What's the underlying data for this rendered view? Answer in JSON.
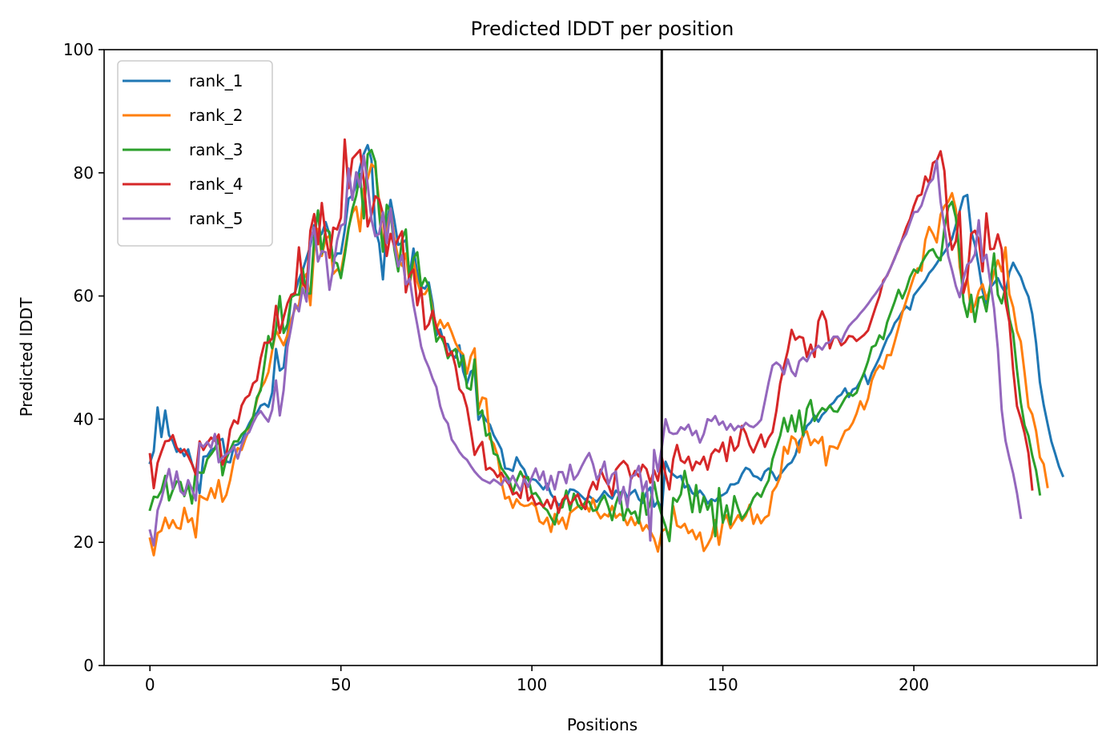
{
  "chart_data": {
    "type": "line",
    "title": "Predicted lDDT per position",
    "xlabel": "Positions",
    "ylabel": "Predicted lDDT",
    "xlim": [
      -12,
      248
    ],
    "ylim": [
      0,
      100
    ],
    "xticks": [
      0,
      50,
      100,
      150,
      200
    ],
    "yticks": [
      0,
      20,
      40,
      60,
      80,
      100
    ],
    "grid": false,
    "legend_position": "top-left",
    "vline": 134,
    "vline_color": "#000000",
    "series": [
      {
        "name": "rank_1",
        "color": "#1f77b4",
        "values": [
          32.9,
          34.8,
          41.9,
          37.1,
          41.4,
          37.4,
          36.4,
          34.7,
          35.2,
          34.0,
          35.1,
          32.8,
          31.2,
          28.0,
          33.9,
          34.0,
          35.0,
          35.3,
          36.5,
          36.8,
          33.1,
          33.0,
          35.7,
          35.9,
          36.4,
          38.0,
          39.3,
          40.4,
          41.0,
          42.2,
          42.5,
          42.0,
          44.3,
          51.4,
          47.9,
          48.4,
          53.8,
          60.0,
          60.6,
          62.7,
          64.2,
          66.2,
          68.1,
          71.5,
          69.6,
          70.1,
          72.0,
          70.0,
          65.9,
          66.9,
          66.9,
          70.7,
          75.8,
          76.3,
          78.1,
          80.9,
          83.1,
          84.5,
          82.1,
          70.9,
          68.6,
          62.7,
          71.3,
          75.6,
          72.2,
          68.3,
          68.6,
          69.1,
          63.3,
          67.7,
          63.7,
          61.5,
          61.2,
          62.2,
          58.8,
          53.6,
          54.6,
          52.3,
          52.2,
          50.4,
          50.0,
          52.0,
          47.8,
          45.8,
          47.7,
          48.1,
          39.9,
          40.9,
          39.8,
          39.1,
          37.4,
          36.3,
          35.1,
          32.0,
          31.9,
          31.6,
          33.8,
          32.6,
          31.8,
          30.1,
          30.3,
          30.1,
          29.4,
          28.6,
          29.5,
          27.8,
          27.0,
          26.0,
          26.5,
          27.3,
          28.6,
          28.5,
          28.1,
          27.5,
          26.9,
          27.5,
          27.0,
          26.6,
          27.4,
          28.3,
          27.6,
          27.1,
          28.4,
          27.8,
          28.6,
          27.3,
          28.0,
          28.5,
          27.0,
          26.4,
          28.1,
          28.9,
          25.8,
          26.7,
          25.3,
          33.1,
          31.6,
          31.0,
          30.5,
          30.8,
          28.9,
          29.3,
          28.0,
          27.6,
          28.4,
          27.6,
          26.3,
          27.0,
          26.7,
          27.4,
          27.7,
          28.1,
          29.4,
          29.4,
          29.7,
          31.1,
          32.1,
          31.8,
          30.8,
          30.6,
          30.1,
          31.5,
          32.0,
          31.3,
          30.1,
          31.0,
          31.8,
          32.6,
          33.0,
          34.2,
          36.4,
          37.2,
          38.9,
          39.5,
          40.6,
          39.6,
          40.7,
          41.3,
          42.2,
          42.7,
          43.6,
          44.0,
          45.0,
          43.6,
          44.8,
          45.1,
          46.2,
          47.4,
          45.7,
          47.5,
          48.7,
          50.0,
          51.6,
          53.1,
          54.1,
          55.6,
          56.4,
          57.5,
          58.3,
          57.8,
          60.1,
          60.9,
          61.7,
          62.5,
          63.7,
          64.4,
          65.3,
          66.3,
          67.1,
          68.1,
          69.3,
          71.5,
          73.8,
          76.1,
          76.4,
          70.5,
          68.3,
          64.8,
          60.8,
          58.8,
          61.4,
          62.1,
          62.9,
          61.5,
          60.5,
          63.8,
          65.4,
          64.2,
          63.1,
          61.3,
          59.9,
          57.1,
          52.4,
          46.0,
          42.3,
          39.3,
          36.4,
          34.4,
          32.3,
          30.8
        ]
      },
      {
        "name": "rank_2",
        "color": "#ff7f0e",
        "values": [
          20.6,
          17.9,
          21.5,
          21.9,
          24.0,
          22.3,
          23.6,
          22.4,
          22.2,
          25.6,
          23.3,
          23.9,
          20.8,
          27.6,
          27.2,
          26.9,
          28.8,
          27.2,
          30.1,
          26.6,
          27.7,
          30.1,
          33.4,
          35.3,
          35.0,
          36.8,
          38.3,
          40.4,
          43.1,
          45.0,
          46.0,
          47.6,
          51.1,
          54.4,
          53.2,
          52.0,
          53.7,
          56.1,
          58.0,
          58.5,
          62.6,
          63.6,
          58.5,
          67.4,
          70.9,
          66.5,
          69.3,
          69.8,
          63.6,
          64.3,
          63.9,
          67.4,
          71.1,
          73.5,
          74.5,
          70.5,
          77.4,
          79.0,
          81.4,
          80.8,
          75.4,
          67.8,
          70.2,
          74.2,
          69.3,
          66.1,
          64.9,
          66.9,
          61.9,
          65.7,
          62.3,
          60.3,
          60.3,
          61.4,
          57.8,
          54.7,
          56.1,
          54.8,
          55.6,
          54.1,
          52.4,
          51.2,
          50.5,
          47.4,
          50.2,
          51.5,
          41.6,
          43.5,
          43.3,
          36.8,
          36.0,
          34.1,
          29.9,
          27.1,
          27.4,
          25.6,
          27.0,
          26.2,
          25.9,
          26.0,
          26.4,
          25.8,
          23.4,
          23.0,
          24.0,
          21.7,
          24.6,
          23.0,
          24.0,
          22.2,
          24.8,
          25.3,
          25.8,
          26.1,
          26.3,
          25.0,
          27.1,
          25.0,
          23.9,
          24.6,
          24.2,
          25.9,
          24.0,
          24.6,
          24.2,
          22.8,
          24.1,
          22.8,
          23.8,
          21.9,
          22.8,
          21.8,
          20.6,
          18.5,
          21.8,
          22.2,
          21.1,
          25.9,
          22.7,
          22.4,
          23.0,
          21.5,
          22.0,
          20.5,
          21.6,
          18.6,
          19.6,
          20.8,
          23.6,
          19.6,
          23.4,
          24.4,
          22.3,
          23.3,
          24.4,
          23.5,
          24.3,
          26.1,
          23.0,
          24.5,
          23.1,
          24.0,
          24.4,
          28.2,
          29.1,
          30.6,
          35.5,
          34.4,
          37.2,
          36.7,
          34.6,
          37.8,
          38.0,
          35.8,
          36.7,
          36.1,
          37.1,
          32.5,
          35.6,
          35.5,
          35.2,
          36.7,
          38.1,
          38.4,
          39.4,
          40.9,
          42.9,
          41.6,
          43.3,
          46.3,
          47.8,
          48.7,
          48.2,
          50.4,
          50.4,
          52.6,
          54.9,
          57.3,
          59.2,
          61.2,
          63.1,
          64.5,
          64.1,
          69.1,
          71.2,
          70.1,
          68.7,
          73.2,
          74.6,
          75.3,
          76.7,
          74.1,
          64.8,
          61.1,
          62.9,
          57.4,
          58.5,
          60.8,
          61.9,
          59.5,
          61.2,
          63.9,
          65.8,
          64.0,
          67.9,
          60.3,
          58.2,
          54.3,
          52.6,
          47.5,
          42.0,
          40.8,
          38.1,
          33.8,
          32.7,
          29.0
        ]
      },
      {
        "name": "rank_3",
        "color": "#2ca02c",
        "values": [
          25.3,
          27.4,
          27.3,
          28.4,
          30.8,
          26.8,
          28.5,
          29.9,
          29.8,
          27.5,
          29.4,
          26.3,
          31.7,
          31.3,
          31.3,
          33.5,
          34.3,
          35.2,
          37.0,
          30.9,
          33.6,
          35.0,
          36.4,
          36.4,
          37.5,
          38.1,
          38.8,
          40.3,
          43.5,
          44.7,
          49.0,
          53.5,
          51.5,
          54.6,
          60.0,
          54.0,
          55.4,
          59.8,
          60.2,
          60.2,
          64.4,
          60.4,
          60.4,
          69.3,
          73.9,
          66.9,
          70.8,
          70.4,
          65.6,
          65.3,
          62.9,
          66.6,
          70.9,
          74.1,
          76.3,
          79.8,
          72.6,
          83.0,
          83.7,
          81.8,
          73.5,
          67.2,
          74.8,
          73.6,
          67.5,
          64.0,
          69.2,
          70.8,
          62.2,
          66.1,
          67.1,
          61.5,
          62.9,
          61.6,
          56.8,
          52.6,
          53.6,
          52.4,
          49.9,
          50.9,
          51.4,
          48.5,
          50.3,
          45.1,
          44.8,
          49.7,
          40.8,
          41.4,
          37.3,
          37.7,
          34.4,
          34.1,
          32.1,
          31.2,
          30.3,
          28.1,
          30.0,
          31.5,
          30.3,
          30.6,
          27.8,
          28.0,
          27.1,
          25.7,
          25.2,
          24.0,
          22.9,
          25.5,
          25.7,
          28.4,
          25.2,
          27.9,
          26.1,
          25.4,
          26.6,
          26.6,
          25.1,
          25.3,
          26.7,
          27.6,
          25.8,
          23.6,
          26.3,
          28.1,
          23.6,
          25.6,
          24.6,
          25.0,
          23.1,
          28.4,
          24.5,
          26.4,
          29.8,
          26.5,
          24.4,
          22.6,
          20.2,
          27.2,
          26.6,
          27.8,
          31.6,
          28.5,
          24.9,
          29.3,
          24.9,
          27.4,
          25.3,
          26.8,
          21.0,
          28.8,
          23.2,
          26.0,
          22.9,
          27.5,
          25.5,
          23.8,
          24.7,
          25.7,
          27.2,
          28.0,
          27.4,
          28.9,
          30.1,
          33.5,
          35.4,
          37.3,
          40.2,
          38.0,
          40.6,
          38.0,
          41.4,
          37.4,
          41.7,
          43.1,
          39.7,
          40.9,
          41.8,
          41.4,
          42.2,
          41.3,
          41.2,
          42.3,
          43.4,
          44.2,
          43.8,
          44.3,
          46.1,
          47.6,
          49.4,
          51.7,
          52.0,
          53.6,
          53.0,
          55.7,
          57.4,
          59.1,
          61.0,
          59.6,
          61.1,
          63.1,
          64.3,
          63.8,
          65.3,
          66.4,
          67.3,
          67.6,
          66.4,
          65.8,
          71.0,
          74.4,
          75.3,
          72.7,
          66.6,
          59.1,
          56.6,
          60.2,
          55.8,
          59.7,
          59.9,
          57.5,
          61.8,
          66.9,
          60.2,
          58.8,
          61.4,
          56.4,
          53.9,
          48.0,
          42.7,
          39.0,
          37.3,
          34.1,
          31.7,
          27.8
        ]
      },
      {
        "name": "rank_4",
        "color": "#d62728",
        "values": [
          34.3,
          28.8,
          32.9,
          34.7,
          36.4,
          36.5,
          37.4,
          35.4,
          34.6,
          35.1,
          34.0,
          32.7,
          31.0,
          36.4,
          35.0,
          36.1,
          37.0,
          36.5,
          37.5,
          32.6,
          34.2,
          38.3,
          39.8,
          39.3,
          42.2,
          43.4,
          43.9,
          45.8,
          46.3,
          49.9,
          52.4,
          52.4,
          53.1,
          58.4,
          54.0,
          56.5,
          58.8,
          60.2,
          60.4,
          67.9,
          62.1,
          61.1,
          70.6,
          73.3,
          68.4,
          75.1,
          69.8,
          66.2,
          71.1,
          70.8,
          72.7,
          85.4,
          77.5,
          82.3,
          83.0,
          83.7,
          78.7,
          71.3,
          73.2,
          76.2,
          75.7,
          73.3,
          66.5,
          70.1,
          68.0,
          69.3,
          70.5,
          60.6,
          63.5,
          64.3,
          58.5,
          61.3,
          54.6,
          55.4,
          57.6,
          55.0,
          53.5,
          53.3,
          50.3,
          51.0,
          48.6,
          44.9,
          44.1,
          41.9,
          38.2,
          34.2,
          35.4,
          36.3,
          31.8,
          32.1,
          31.6,
          30.6,
          31.3,
          30.2,
          29.4,
          27.8,
          28.1,
          27.2,
          30.7,
          26.8,
          27.6,
          26.1,
          26.4,
          25.8,
          26.9,
          25.5,
          27.4,
          24.8,
          26.9,
          27.6,
          26.2,
          27.0,
          27.8,
          26.2,
          25.4,
          28.3,
          29.8,
          28.6,
          31.8,
          30.3,
          29.3,
          27.6,
          31.8,
          32.6,
          33.2,
          32.5,
          30.3,
          31.6,
          30.7,
          32.6,
          31.9,
          29.7,
          31.7,
          30.0,
          33.8,
          31.0,
          28.6,
          33.5,
          35.8,
          33.3,
          32.9,
          33.9,
          31.7,
          33.1,
          32.7,
          33.9,
          31.8,
          34.3,
          35.1,
          34.7,
          36.2,
          33.2,
          37.1,
          34.9,
          35.7,
          38.9,
          37.7,
          35.8,
          34.6,
          36.1,
          37.5,
          35.5,
          37.0,
          37.9,
          41.3,
          45.8,
          48.6,
          51.1,
          54.5,
          52.9,
          53.4,
          53.2,
          50.1,
          52.1,
          50.1,
          55.9,
          57.5,
          56.0,
          51.5,
          53.3,
          53.4,
          52.0,
          52.5,
          53.5,
          53.4,
          52.7,
          53.2,
          53.7,
          54.4,
          56.3,
          58.2,
          60.0,
          62.5,
          63.3,
          64.7,
          66.2,
          67.6,
          69.3,
          71.1,
          72.5,
          74.6,
          76.2,
          76.5,
          79.4,
          78.3,
          81.6,
          82.0,
          83.5,
          80.3,
          71.2,
          67.5,
          68.9,
          73.7,
          60.5,
          62.9,
          70.1,
          70.6,
          69.1,
          64.0,
          73.4,
          67.6,
          67.7,
          70.0,
          67.6,
          59.1,
          55.8,
          48.0,
          42.1,
          40.1,
          37.7,
          34.5,
          28.6
        ]
      },
      {
        "name": "rank_5",
        "color": "#9467bd",
        "values": [
          21.9,
          19.5,
          25.2,
          27.0,
          29.6,
          31.9,
          28.7,
          31.5,
          28.3,
          27.7,
          30.1,
          28.6,
          26.8,
          36.1,
          35.5,
          36.3,
          35.3,
          37.6,
          33.0,
          33.8,
          34.3,
          34.7,
          35.6,
          33.6,
          35.8,
          37.3,
          37.9,
          39.4,
          40.6,
          41.3,
          40.4,
          39.6,
          41.5,
          46.3,
          40.6,
          44.7,
          51.7,
          55.0,
          58.7,
          57.5,
          61.3,
          59.1,
          68.8,
          71.1,
          65.6,
          67.3,
          67.1,
          61.0,
          64.6,
          69.0,
          71.4,
          71.8,
          80.7,
          75.6,
          80.1,
          77.7,
          82.8,
          78.1,
          72.4,
          69.7,
          70.1,
          73.6,
          68.6,
          74.2,
          68.2,
          64.8,
          66.6,
          61.9,
          62.8,
          58.6,
          55.3,
          51.8,
          49.8,
          48.4,
          46.6,
          45.2,
          42.1,
          40.2,
          39.3,
          36.7,
          35.8,
          34.7,
          33.9,
          33.4,
          32.4,
          31.5,
          30.8,
          30.2,
          29.9,
          29.6,
          30.2,
          29.8,
          29.3,
          30.5,
          29.6,
          30.8,
          29.5,
          28.4,
          30.3,
          29.0,
          30.6,
          32.0,
          30.1,
          31.5,
          28.5,
          30.8,
          28.6,
          31.4,
          31.4,
          29.6,
          32.6,
          30.2,
          31.0,
          32.3,
          33.5,
          34.5,
          32.7,
          30.2,
          31.3,
          33.1,
          29.4,
          31.0,
          31.5,
          26.3,
          29.0,
          25.7,
          30.7,
          30.9,
          32.4,
          28.3,
          29.9,
          20.3,
          35.0,
          31.5,
          35.4,
          40.0,
          37.9,
          37.6,
          37.7,
          38.7,
          38.3,
          39.1,
          37.4,
          38.1,
          36.2,
          37.6,
          40.0,
          39.7,
          40.5,
          39.1,
          39.6,
          38.3,
          39.2,
          38.2,
          38.9,
          38.6,
          39.4,
          38.9,
          38.7,
          39.2,
          39.9,
          42.9,
          46.0,
          48.7,
          49.2,
          48.7,
          47.3,
          49.7,
          47.8,
          47.0,
          49.4,
          50.0,
          49.4,
          50.7,
          51.3,
          51.9,
          51.3,
          52.3,
          52.5,
          53.4,
          53.4,
          52.6,
          54.0,
          55.1,
          55.8,
          56.4,
          57.2,
          57.9,
          58.7,
          59.6,
          60.4,
          61.3,
          62.2,
          63.4,
          64.7,
          66.1,
          67.8,
          69.1,
          70.1,
          71.9,
          73.6,
          73.7,
          74.7,
          76.7,
          78.3,
          79.0,
          82.0,
          75.3,
          71.3,
          66.5,
          64.2,
          61.6,
          59.8,
          62.8,
          65.1,
          65.6,
          66.8,
          72.3,
          65.6,
          66.7,
          62.3,
          58.0,
          51.4,
          41.5,
          36.5,
          33.7,
          31.2,
          28.0,
          24.0
        ]
      }
    ]
  }
}
